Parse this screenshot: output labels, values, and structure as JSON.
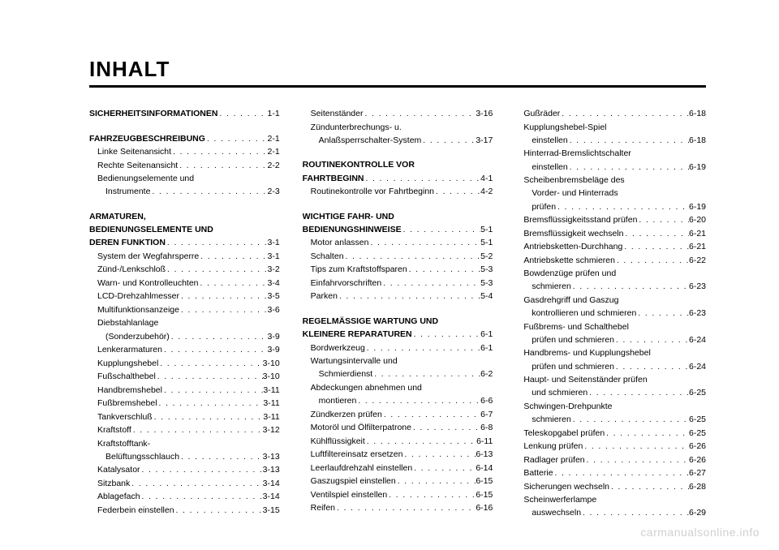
{
  "title": "INHALT",
  "watermark": "carmanualsonline.info",
  "columns": [
    [
      {
        "label": "SICHERHEITSINFORMATIONEN",
        "page": "1-1",
        "bold": true,
        "indent": 0
      },
      {
        "gap": true
      },
      {
        "label": "FAHRZEUGBESCHREIBUNG",
        "page": "2-1",
        "bold": true,
        "indent": 0
      },
      {
        "label": "Linke Seitenansicht",
        "page": "2-1",
        "indent": 1
      },
      {
        "label": "Rechte Seitenansicht",
        "page": "2-2",
        "indent": 1
      },
      {
        "label": "Bedienungselemente und",
        "indent": 1,
        "nopage": true
      },
      {
        "label": "Instrumente",
        "page": "2-3",
        "indent": 2
      },
      {
        "gap": true
      },
      {
        "label": "ARMATUREN,",
        "bold": true,
        "indent": 0,
        "nopage": true
      },
      {
        "label": "BEDIENUNGSELEMENTE UND",
        "bold": true,
        "indent": 0,
        "nopage": true
      },
      {
        "label": "DEREN FUNKTION",
        "page": "3-1",
        "bold": true,
        "indent": 0
      },
      {
        "label": "System der Wegfahrsperre",
        "page": "3-1",
        "indent": 1
      },
      {
        "label": "Zünd-/Lenkschloß",
        "page": "3-2",
        "indent": 1
      },
      {
        "label": "Warn- und Kontrolleuchten",
        "page": "3-4",
        "indent": 1
      },
      {
        "label": "LCD-Drehzahlmesser",
        "page": "3-5",
        "indent": 1
      },
      {
        "label": "Multifunktionsanzeige",
        "page": "3-6",
        "indent": 1
      },
      {
        "label": "Diebstahlanlage",
        "indent": 1,
        "nopage": true
      },
      {
        "label": "(Sonderzubehör)",
        "page": "3-9",
        "indent": 2
      },
      {
        "label": "Lenkerarmaturen",
        "page": "3-9",
        "indent": 1
      },
      {
        "label": "Kupplungshebel",
        "page": "3-10",
        "indent": 1
      },
      {
        "label": "Fußschalthebel",
        "page": "3-10",
        "indent": 1
      },
      {
        "label": "Handbremshebel",
        "page": "3-11",
        "indent": 1
      },
      {
        "label": "Fußbremshebel",
        "page": "3-11",
        "indent": 1
      },
      {
        "label": "Tankverschluß",
        "page": "3-11",
        "indent": 1
      },
      {
        "label": "Kraftstoff",
        "page": "3-12",
        "indent": 1
      },
      {
        "label": "Kraftstofftank-",
        "indent": 1,
        "nopage": true
      },
      {
        "label": "Belüftungsschlauch",
        "page": "3-13",
        "indent": 2
      },
      {
        "label": "Katalysator",
        "page": "3-13",
        "indent": 1
      },
      {
        "label": "Sitzbank",
        "page": "3-14",
        "indent": 1
      },
      {
        "label": "Ablagefach",
        "page": "3-14",
        "indent": 1
      },
      {
        "label": "Federbein einstellen",
        "page": "3-15",
        "indent": 1
      }
    ],
    [
      {
        "label": "Seitenständer",
        "page": "3-16",
        "indent": 1
      },
      {
        "label": "Zündunterbrechungs- u.",
        "indent": 1,
        "nopage": true
      },
      {
        "label": "Anlaßsperrschalter-System",
        "page": "3-17",
        "indent": 2
      },
      {
        "gap": true
      },
      {
        "label": "ROUTINEKONTROLLE VOR",
        "bold": true,
        "indent": 0,
        "nopage": true
      },
      {
        "label": "FAHRTBEGINN",
        "page": "4-1",
        "bold": true,
        "indent": 0
      },
      {
        "label": "Routinekontrolle vor Fahrtbeginn",
        "page": "4-2",
        "indent": 1
      },
      {
        "gap": true
      },
      {
        "label": "WICHTIGE FAHR- UND",
        "bold": true,
        "indent": 0,
        "nopage": true
      },
      {
        "label": "BEDIENUNGSHINWEISE",
        "page": "5-1",
        "bold": true,
        "indent": 0
      },
      {
        "label": "Motor anlassen",
        "page": "5-1",
        "indent": 1
      },
      {
        "label": "Schalten",
        "page": "5-2",
        "indent": 1
      },
      {
        "label": "Tips zum Kraftstoffsparen",
        "page": "5-3",
        "indent": 1
      },
      {
        "label": "Einfahrvorschriften",
        "page": "5-3",
        "indent": 1
      },
      {
        "label": "Parken",
        "page": "5-4",
        "indent": 1
      },
      {
        "gap": true
      },
      {
        "label": "REGELMÄSSIGE WARTUNG UND",
        "bold": true,
        "indent": 0,
        "nopage": true
      },
      {
        "label": "KLEINERE REPARATUREN",
        "page": "6-1",
        "bold": true,
        "indent": 0
      },
      {
        "label": "Bordwerkzeug",
        "page": "6-1",
        "indent": 1
      },
      {
        "label": "Wartungsintervalle und",
        "indent": 1,
        "nopage": true
      },
      {
        "label": "Schmierdienst",
        "page": "6-2",
        "indent": 2
      },
      {
        "label": "Abdeckungen abnehmen und",
        "indent": 1,
        "nopage": true
      },
      {
        "label": "montieren",
        "page": "6-6",
        "indent": 2
      },
      {
        "label": "Zündkerzen prüfen",
        "page": "6-7",
        "indent": 1
      },
      {
        "label": "Motoröl und Ölfilterpatrone",
        "page": "6-8",
        "indent": 1
      },
      {
        "label": "Kühlflüssigkeit",
        "page": "6-11",
        "indent": 1
      },
      {
        "label": "Luftfiltereinsatz ersetzen",
        "page": "6-13",
        "indent": 1
      },
      {
        "label": "Leerlaufdrehzahl einstellen",
        "page": "6-14",
        "indent": 1
      },
      {
        "label": "Gaszugspiel einstellen",
        "page": "6-15",
        "indent": 1
      },
      {
        "label": "Ventilspiel einstellen",
        "page": "6-15",
        "indent": 1
      },
      {
        "label": "Reifen",
        "page": "6-16",
        "indent": 1
      }
    ],
    [
      {
        "label": "Gußräder",
        "page": "6-18",
        "indent": 1
      },
      {
        "label": "Kupplungshebel-Spiel",
        "indent": 1,
        "nopage": true
      },
      {
        "label": "einstellen",
        "page": "6-18",
        "indent": 2
      },
      {
        "label": "Hinterrad-Bremslichtschalter",
        "indent": 1,
        "nopage": true
      },
      {
        "label": "einstellen",
        "page": "6-19",
        "indent": 2
      },
      {
        "label": "Scheibenbremsbeläge des",
        "indent": 1,
        "nopage": true
      },
      {
        "label": "Vorder- und Hinterrads",
        "indent": 2,
        "nopage": true
      },
      {
        "label": "prüfen",
        "page": "6-19",
        "indent": 2
      },
      {
        "label": "Bremsflüssigkeitsstand prüfen",
        "page": "6-20",
        "indent": 1
      },
      {
        "label": "Bremsflüssigkeit wechseln",
        "page": "6-21",
        "indent": 1
      },
      {
        "label": "Antriebsketten-Durchhang",
        "page": "6-21",
        "indent": 1
      },
      {
        "label": "Antriebskette schmieren",
        "page": "6-22",
        "indent": 1
      },
      {
        "label": "Bowdenzüge prüfen und",
        "indent": 1,
        "nopage": true
      },
      {
        "label": "schmieren",
        "page": "6-23",
        "indent": 2
      },
      {
        "label": "Gasdrehgriff und Gaszug",
        "indent": 1,
        "nopage": true
      },
      {
        "label": "kontrollieren und schmieren",
        "page": "6-23",
        "indent": 2
      },
      {
        "label": "Fußbrems- und Schalthebel",
        "indent": 1,
        "nopage": true
      },
      {
        "label": "prüfen und schmieren",
        "page": "6-24",
        "indent": 2
      },
      {
        "label": "Handbrems- und Kupplungshebel",
        "indent": 1,
        "nopage": true
      },
      {
        "label": "prüfen und schmieren",
        "page": "6-24",
        "indent": 2
      },
      {
        "label": "Haupt- und Seitenständer prüfen",
        "indent": 1,
        "nopage": true
      },
      {
        "label": "und schmieren",
        "page": "6-25",
        "indent": 2
      },
      {
        "label": "Schwingen-Drehpunkte",
        "indent": 1,
        "nopage": true
      },
      {
        "label": "schmieren",
        "page": "6-25",
        "indent": 2
      },
      {
        "label": "Teleskopgabel prüfen",
        "page": "6-25",
        "indent": 1
      },
      {
        "label": "Lenkung prüfen",
        "page": "6-26",
        "indent": 1
      },
      {
        "label": "Radlager prüfen",
        "page": "6-26",
        "indent": 1
      },
      {
        "label": "Batterie",
        "page": "6-27",
        "indent": 1
      },
      {
        "label": "Sicherungen wechseln",
        "page": "6-28",
        "indent": 1
      },
      {
        "label": "Scheinwerferlampe",
        "indent": 1,
        "nopage": true
      },
      {
        "label": "auswechseln",
        "page": "6-29",
        "indent": 2
      }
    ]
  ]
}
